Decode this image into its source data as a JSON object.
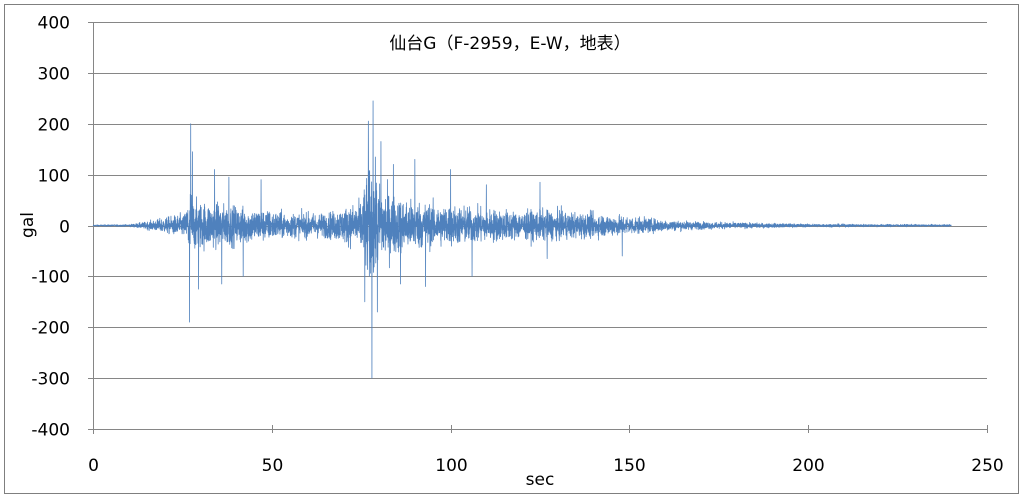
{
  "chart_data": {
    "type": "line",
    "title": "仙台G（F-2959，E-W，地表）",
    "xlabel": "sec",
    "ylabel": "gal",
    "xlim": [
      0,
      250
    ],
    "ylim": [
      -400,
      400
    ],
    "xticks": [
      0,
      50,
      100,
      150,
      200,
      250
    ],
    "yticks": [
      400,
      300,
      200,
      100,
      0,
      -100,
      -200,
      -300,
      -400
    ],
    "grid": "horizontal",
    "series": [
      {
        "color": "#4F81BD",
        "duration_sec": 240,
        "envelope_sec": [
          0,
          10,
          15,
          20,
          26,
          27,
          28,
          35,
          45,
          55,
          65,
          70,
          75,
          77,
          78,
          80,
          85,
          95,
          105,
          120,
          125,
          145,
          150,
          160,
          170,
          185,
          200,
          240
        ],
        "envelope_gal": [
          2,
          3,
          12,
          25,
          40,
          150,
          80,
          70,
          55,
          40,
          40,
          55,
          80,
          190,
          200,
          130,
          90,
          70,
          60,
          45,
          50,
          35,
          30,
          18,
          12,
          8,
          5,
          3
        ],
        "peaks": [
          {
            "t": 27.3,
            "v": 200
          },
          {
            "t": 27.0,
            "v": -190
          },
          {
            "t": 27.8,
            "v": 145
          },
          {
            "t": 29.5,
            "v": -125
          },
          {
            "t": 34.0,
            "v": 110
          },
          {
            "t": 36.0,
            "v": -115
          },
          {
            "t": 38.0,
            "v": 95
          },
          {
            "t": 42.0,
            "v": -100
          },
          {
            "t": 47.0,
            "v": 90
          },
          {
            "t": 76.0,
            "v": -150
          },
          {
            "t": 77.0,
            "v": 205
          },
          {
            "t": 78.0,
            "v": -300
          },
          {
            "t": 78.3,
            "v": 245
          },
          {
            "t": 79.5,
            "v": -170
          },
          {
            "t": 80.5,
            "v": 165
          },
          {
            "t": 84.0,
            "v": 120
          },
          {
            "t": 86.0,
            "v": -115
          },
          {
            "t": 90.0,
            "v": 130
          },
          {
            "t": 93.0,
            "v": -120
          },
          {
            "t": 100.0,
            "v": 110
          },
          {
            "t": 106.0,
            "v": -100
          },
          {
            "t": 110.0,
            "v": 80
          },
          {
            "t": 125.0,
            "v": 85
          },
          {
            "t": 127.0,
            "v": -65
          },
          {
            "t": 148.0,
            "v": -60
          }
        ]
      }
    ]
  }
}
